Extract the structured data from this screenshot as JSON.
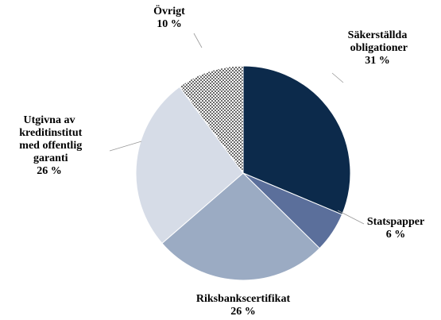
{
  "chart_data": {
    "type": "pie",
    "categories": [
      "Säkerställda\nobligationer",
      "Statspapper",
      "Riksbankscertifikat",
      "Utgivna av\nkreditinstitut\nmed offentlig\ngaranti",
      "Övrigt"
    ],
    "values": [
      31,
      6,
      26,
      26,
      10
    ],
    "value_labels": [
      "31 %",
      "6 %",
      "26 %",
      "26 %",
      "10 %"
    ],
    "colors": [
      "#0c2a4b",
      "#5b6f9b",
      "#9babc3",
      "#d6dce7",
      "#000000"
    ],
    "patterns": [
      null,
      null,
      null,
      null,
      "dots"
    ]
  }
}
